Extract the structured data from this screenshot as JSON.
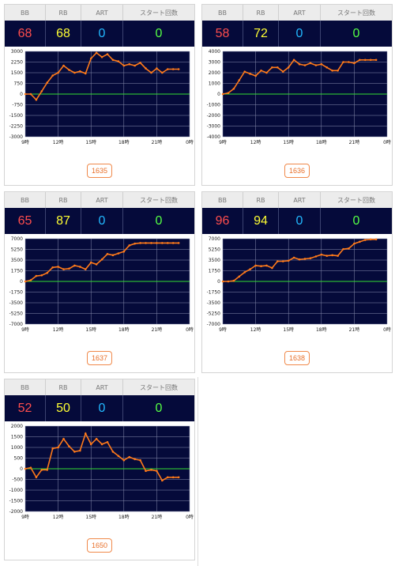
{
  "headers": {
    "bb": "BB",
    "rb": "RB",
    "art": "ART",
    "start": "スタート回数"
  },
  "colors": {
    "plot_bg": "#050a3a",
    "grid": "#8a8fb0",
    "series": "#ff7a1a",
    "zero_line": "#33dd33"
  },
  "machines": [
    {
      "bb": "68",
      "rb": "68",
      "art": "0",
      "start": "0",
      "number": "1635",
      "chart_data": {
        "type": "line",
        "x_ticks": [
          "9時",
          "12時",
          "15時",
          "18時",
          "21時",
          "0時"
        ],
        "y_ticks": [
          "3000",
          "2250",
          "1500",
          "750",
          "0",
          "-750",
          "-1500",
          "-2250",
          "-3000"
        ],
        "ylim": [
          -3000,
          3000
        ],
        "xlim": [
          0,
          15
        ],
        "x": [
          0,
          0.5,
          1,
          1.5,
          2,
          2.5,
          3,
          3.5,
          4,
          4.5,
          5,
          5.5,
          6,
          6.5,
          7,
          7.5,
          8,
          8.5,
          9,
          9.5,
          10,
          10.5,
          11,
          11.5,
          12,
          12.5,
          13,
          13.5,
          14
        ],
        "values": [
          0,
          0,
          -400,
          200,
          800,
          1300,
          1500,
          2000,
          1700,
          1500,
          1600,
          1450,
          2500,
          2900,
          2600,
          2800,
          2400,
          2300,
          2000,
          2100,
          2000,
          2200,
          1800,
          1500,
          1800,
          1500,
          1750,
          1750,
          1750
        ]
      }
    },
    {
      "bb": "58",
      "rb": "72",
      "art": "0",
      "start": "0",
      "number": "1636",
      "chart_data": {
        "type": "line",
        "x_ticks": [
          "9時",
          "12時",
          "15時",
          "18時",
          "21時",
          "0時"
        ],
        "y_ticks": [
          "4000",
          "3000",
          "2000",
          "1000",
          "0",
          "-1000",
          "-2000",
          "-3000",
          "-4000"
        ],
        "ylim": [
          -4000,
          4000
        ],
        "xlim": [
          0,
          15
        ],
        "x": [
          0,
          0.5,
          1,
          1.5,
          2,
          2.5,
          3,
          3.5,
          4,
          4.5,
          5,
          5.5,
          6,
          6.5,
          7,
          7.5,
          8,
          8.5,
          9,
          9.5,
          10,
          10.5,
          11,
          11.5,
          12,
          12.5,
          13,
          13.5,
          14
        ],
        "values": [
          0,
          100,
          500,
          1300,
          2100,
          1900,
          1700,
          2200,
          2000,
          2500,
          2500,
          2100,
          2500,
          3200,
          2800,
          2700,
          2900,
          2700,
          2800,
          2500,
          2200,
          2200,
          3000,
          3000,
          2900,
          3200,
          3200,
          3200,
          3200
        ]
      }
    },
    {
      "bb": "65",
      "rb": "87",
      "art": "0",
      "start": "0",
      "number": "1637",
      "chart_data": {
        "type": "line",
        "x_ticks": [
          "9時",
          "12時",
          "15時",
          "18時",
          "21時",
          "0時"
        ],
        "y_ticks": [
          "7000",
          "5250",
          "3500",
          "1750",
          "0",
          "-1750",
          "-3500",
          "-5250",
          "-7000"
        ],
        "ylim": [
          -7000,
          7000
        ],
        "xlim": [
          0,
          15
        ],
        "x": [
          0,
          0.5,
          1,
          1.5,
          2,
          2.5,
          3,
          3.5,
          4,
          4.5,
          5,
          5.5,
          6,
          6.5,
          7,
          7.5,
          8,
          8.5,
          9,
          9.5,
          10,
          10.5,
          11,
          11.5,
          12,
          12.5,
          13,
          13.5,
          14
        ],
        "values": [
          0,
          200,
          900,
          1000,
          1400,
          2300,
          2400,
          2000,
          2100,
          2600,
          2400,
          2000,
          3100,
          2800,
          3600,
          4500,
          4300,
          4600,
          4900,
          5900,
          6200,
          6300,
          6300,
          6300,
          6300,
          6300,
          6300,
          6300,
          6300
        ]
      }
    },
    {
      "bb": "96",
      "rb": "94",
      "art": "0",
      "start": "0",
      "number": "1638",
      "chart_data": {
        "type": "line",
        "x_ticks": [
          "9時",
          "12時",
          "15時",
          "18時",
          "21時",
          "0時"
        ],
        "y_ticks": [
          "7000",
          "5250",
          "3500",
          "1750",
          "0",
          "-1750",
          "-3500",
          "-5250",
          "-7000"
        ],
        "ylim": [
          -7000,
          7000
        ],
        "xlim": [
          0,
          15
        ],
        "x": [
          0,
          0.5,
          1,
          1.5,
          2,
          2.5,
          3,
          3.5,
          4,
          4.5,
          5,
          5.5,
          6,
          6.5,
          7,
          7.5,
          8,
          8.5,
          9,
          9.5,
          10,
          10.5,
          11,
          11.5,
          12,
          12.5,
          13,
          13.5,
          14
        ],
        "values": [
          0,
          0,
          100,
          800,
          1500,
          2000,
          2600,
          2500,
          2600,
          2200,
          3300,
          3300,
          3400,
          3900,
          3600,
          3700,
          3800,
          4100,
          4400,
          4200,
          4300,
          4200,
          5300,
          5400,
          6200,
          6500,
          6800,
          6900,
          6900
        ]
      }
    },
    {
      "bb": "52",
      "rb": "50",
      "art": "0",
      "start": "0",
      "number": "1650",
      "chart_data": {
        "type": "line",
        "x_ticks": [
          "9時",
          "12時",
          "15時",
          "18時",
          "21時",
          "0時"
        ],
        "y_ticks": [
          "2000",
          "1500",
          "1000",
          "500",
          "0",
          "-500",
          "-1000",
          "-1500",
          "-2000"
        ],
        "ylim": [
          -2000,
          2000
        ],
        "xlim": [
          0,
          15
        ],
        "x": [
          0,
          0.5,
          1,
          1.5,
          2,
          2.5,
          3,
          3.5,
          4,
          4.5,
          5,
          5.5,
          6,
          6.5,
          7,
          7.5,
          8,
          8.5,
          9,
          9.5,
          10,
          10.5,
          11,
          11.5,
          12,
          12.5,
          13,
          13.5,
          14
        ],
        "values": [
          0,
          50,
          -400,
          -50,
          -50,
          950,
          1000,
          1400,
          1050,
          800,
          850,
          1650,
          1150,
          1400,
          1150,
          1250,
          800,
          600,
          400,
          550,
          450,
          400,
          -100,
          -50,
          -100,
          -550,
          -400,
          -400,
          -400
        ]
      }
    }
  ]
}
